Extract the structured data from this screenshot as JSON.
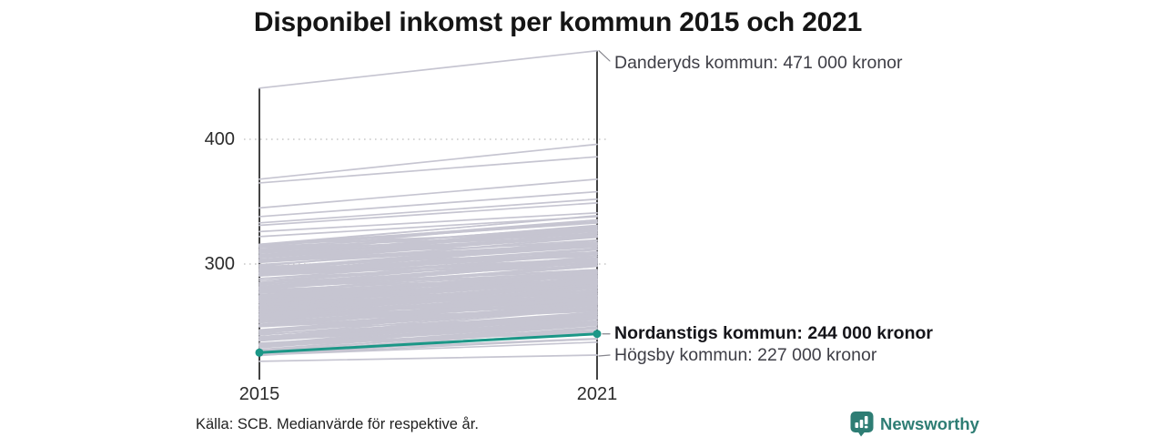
{
  "title": "Disponibel inkomst per kommun 2015 och 2021",
  "footer": {
    "source": "Källa: SCB. Medianvärde för respektive år.",
    "brand": "Newsworthy"
  },
  "colors": {
    "highlight_teal": "#1b9787",
    "background_line": "#c6c5d1",
    "axis": "#2e2e2e",
    "grid": "#c9c9c9",
    "leader": "#85858d",
    "brand_teal": "#2e7d74"
  },
  "chart_data": {
    "type": "line",
    "subtype": "slope",
    "title": "Disponibel inkomst per kommun 2015 och 2021",
    "x_labels": [
      "2015",
      "2021"
    ],
    "y_ticks": [
      {
        "value": 400,
        "label": "400"
      },
      {
        "value": 300,
        "label": "300"
      }
    ],
    "y_axis_left_range": [
      212,
      445
    ],
    "y_axis_right_range": [
      212,
      471
    ],
    "grid": true,
    "legend": false,
    "unit_hint": "tusen kronor",
    "series": [
      {
        "name": "Danderyds kommun",
        "values": [
          441,
          471
        ],
        "annotation": "Danderyds kommun: 471 000 kronor",
        "style": "annotated-gray"
      },
      {
        "name": "Nordanstigs kommun",
        "values": [
          229,
          244
        ],
        "annotation": "Nordanstigs kommun: 244 000 kronor",
        "style": "highlight",
        "color": "#1b9787"
      },
      {
        "name": "Högsby kommun",
        "values": [
          222,
          227
        ],
        "annotation": "Högsby kommun: 227 000 kronor",
        "style": "annotated-gray"
      }
    ],
    "other_lines": [
      [
        368,
        396
      ],
      [
        365,
        386
      ],
      [
        345,
        368
      ],
      [
        338,
        358
      ],
      [
        333,
        352
      ],
      [
        331,
        349
      ],
      [
        326,
        341
      ],
      [
        322,
        338
      ]
    ],
    "background_band": {
      "description": "approx. 290 Swedish municipalities, unlabeled gray slope lines",
      "count": 215,
      "left_min": 226,
      "left_max": 316,
      "delta_min": 10,
      "delta_max": 24,
      "cluster_count": 45,
      "cluster_left_min": 246,
      "cluster_left_max": 298,
      "cluster_delta_min": 11,
      "cluster_delta_max": 23,
      "seed": 7,
      "color": "#c6c5d1"
    }
  }
}
